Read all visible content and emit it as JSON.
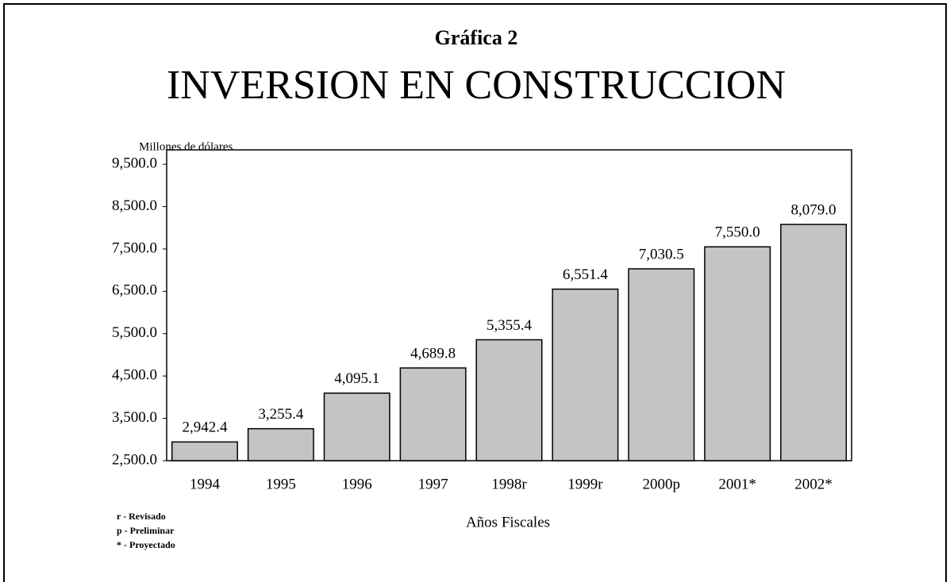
{
  "chart_data": {
    "type": "bar",
    "subtitle": "Gráfica 2",
    "title": "INVERSION EN CONSTRUCCION",
    "y_label": "Millones de dólares",
    "x_label": "Años Fiscales",
    "categories": [
      "1994",
      "1995",
      "1996",
      "1997",
      "1998r",
      "1999r",
      "2000p",
      "2001*",
      "2002*"
    ],
    "values": [
      2942.4,
      3255.4,
      4095.1,
      4689.8,
      5355.4,
      6551.4,
      7030.5,
      7550.0,
      8079.0
    ],
    "value_labels": [
      "2,942.4",
      "3,255.4",
      "4,095.1",
      "4,689.8",
      "5,355.4",
      "6,551.4",
      "7,030.5",
      "7,550.0",
      "8,079.0"
    ],
    "color": "#c4c4c4",
    "ylim": [
      2500,
      9840
    ],
    "yticks": [
      {
        "value": 2500,
        "label": "2,500.0"
      },
      {
        "value": 3500,
        "label": "3,500.0"
      },
      {
        "value": 4500,
        "label": "4,500.0"
      },
      {
        "value": 5500,
        "label": "5,500.0"
      },
      {
        "value": 6500,
        "label": "6,500.0"
      },
      {
        "value": 7500,
        "label": "7,500.0"
      },
      {
        "value": 8500,
        "label": "8,500.0"
      },
      {
        "value": 9500,
        "label": "9,500.0"
      }
    ],
    "grid": false,
    "notes": [
      "r - Revisado",
      "p - Preliminar",
      "* - Proyectado"
    ]
  }
}
